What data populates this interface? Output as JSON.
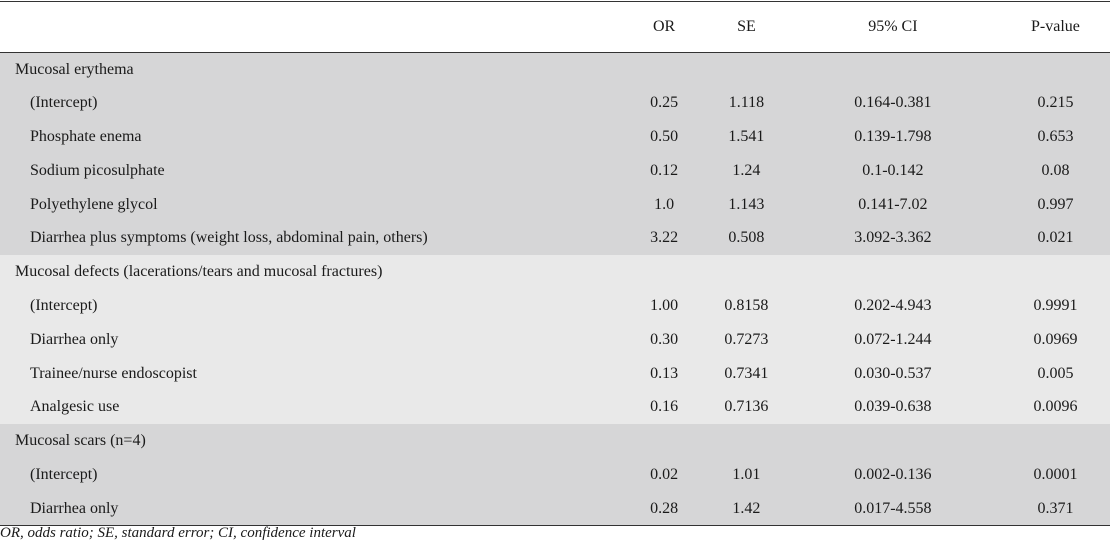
{
  "table": {
    "headers": [
      "",
      "OR",
      "SE",
      "95% CI",
      "P-value"
    ],
    "groups": [
      {
        "title": "Mucosal erythema",
        "rows": [
          {
            "label": "(Intercept)",
            "or": "0.25",
            "se": "1.118",
            "ci": "0.164-0.381",
            "p": "0.215"
          },
          {
            "label": "Phosphate enema",
            "or": "0.50",
            "se": "1.541",
            "ci": "0.139-1.798",
            "p": "0.653"
          },
          {
            "label": "Sodium picosulphate",
            "or": "0.12",
            "se": "1.24",
            "ci": "0.1-0.142",
            "p": "0.08"
          },
          {
            "label": "Polyethylene glycol",
            "or": "1.0",
            "se": "1.143",
            "ci": "0.141-7.02",
            "p": "0.997"
          },
          {
            "label": "Diarrhea plus symptoms (weight loss, abdominal pain, others)",
            "or": "3.22",
            "se": "0.508",
            "ci": "3.092-3.362",
            "p": "0.021"
          }
        ]
      },
      {
        "title": "Mucosal defects (lacerations/tears and mucosal fractures)",
        "rows": [
          {
            "label": "(Intercept)",
            "or": "1.00",
            "se": "0.8158",
            "ci": "0.202-4.943",
            "p": "0.9991"
          },
          {
            "label": "Diarrhea only",
            "or": "0.30",
            "se": "0.7273",
            "ci": "0.072-1.244",
            "p": "0.0969"
          },
          {
            "label": "Trainee/nurse endoscopist",
            "or": "0.13",
            "se": "0.7341",
            "ci": "0.030-0.537",
            "p": "0.005"
          },
          {
            "label": "Analgesic use",
            "or": "0.16",
            "se": "0.7136",
            "ci": "0.039-0.638",
            "p": "0.0096"
          }
        ]
      },
      {
        "title": "Mucosal scars (n=4)",
        "rows": [
          {
            "label": "(Intercept)",
            "or": "0.02",
            "se": "1.01",
            "ci": "0.002-0.136",
            "p": "0.0001"
          },
          {
            "label": "Diarrhea only",
            "or": "0.28",
            "se": "1.42",
            "ci": "0.017-4.558",
            "p": "0.371"
          }
        ]
      }
    ]
  },
  "footnote": "OR, odds ratio; SE, standard error; CI, confidence interval"
}
